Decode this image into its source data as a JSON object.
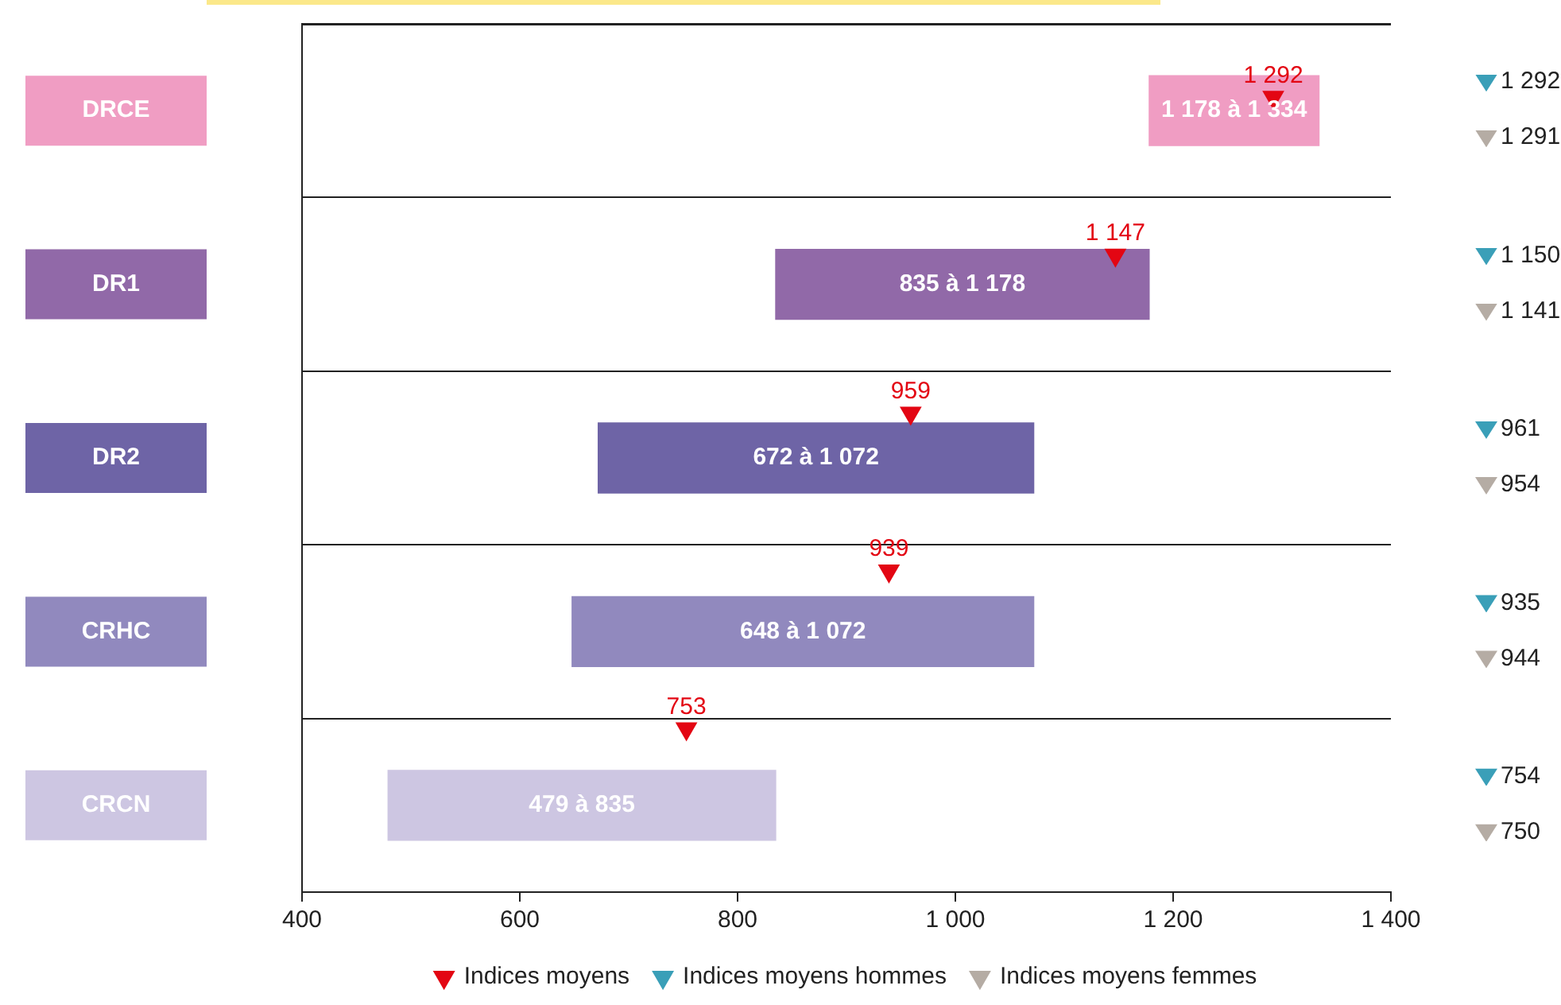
{
  "chart_data": {
    "type": "bar",
    "orientation": "horizontal",
    "categories": [
      "DRCE",
      "DR1",
      "DR2",
      "CRHC",
      "CRCN"
    ],
    "series": [
      {
        "type": "bar",
        "colors": [
          "#f09dc3",
          "#9169a8",
          "#6e64a6",
          "#9189be",
          "#cdc6e2"
        ],
        "base": [
          1178,
          835,
          672,
          648,
          479
        ],
        "values": [
          156,
          343,
          400,
          424,
          356
        ]
      },
      {
        "type": "scatter",
        "name": "Indices moyens",
        "color": "#e30613",
        "marker": "triangle",
        "values": [
          1292,
          1147,
          959,
          939,
          753
        ],
        "value_labels": [
          "1 292",
          "1 147",
          "959",
          "939",
          "753"
        ]
      },
      {
        "type": "scatter",
        "name": "Indices moyens hommes",
        "color": "#3a9fb8",
        "values": [
          null,
          null,
          null,
          null,
          null
        ]
      },
      {
        "type": "scatter",
        "name": "Indices moyens femmes",
        "color": "#b5aca4",
        "values": [
          null,
          null,
          null,
          null,
          null
        ]
      }
    ],
    "annotations": [
      "1 178 à 1 334",
      "835 à 1 178",
      "672 à 1 072",
      "648 à 1 072",
      "479 à 835",
      "1 292",
      "1 150",
      "961",
      "935",
      "754",
      "1 291",
      "1 141",
      "954",
      "944",
      "750"
    ],
    "xlim": [
      400,
      1400
    ],
    "xticks": [
      400,
      600,
      800,
      {
        "value": 1000,
        "label": "1 000"
      },
      {
        "value": 1200,
        "label": "1 200"
      },
      {
        "value": 1400,
        "label": "1 400"
      }
    ],
    "grid": "y",
    "legend": "bottom"
  }
}
